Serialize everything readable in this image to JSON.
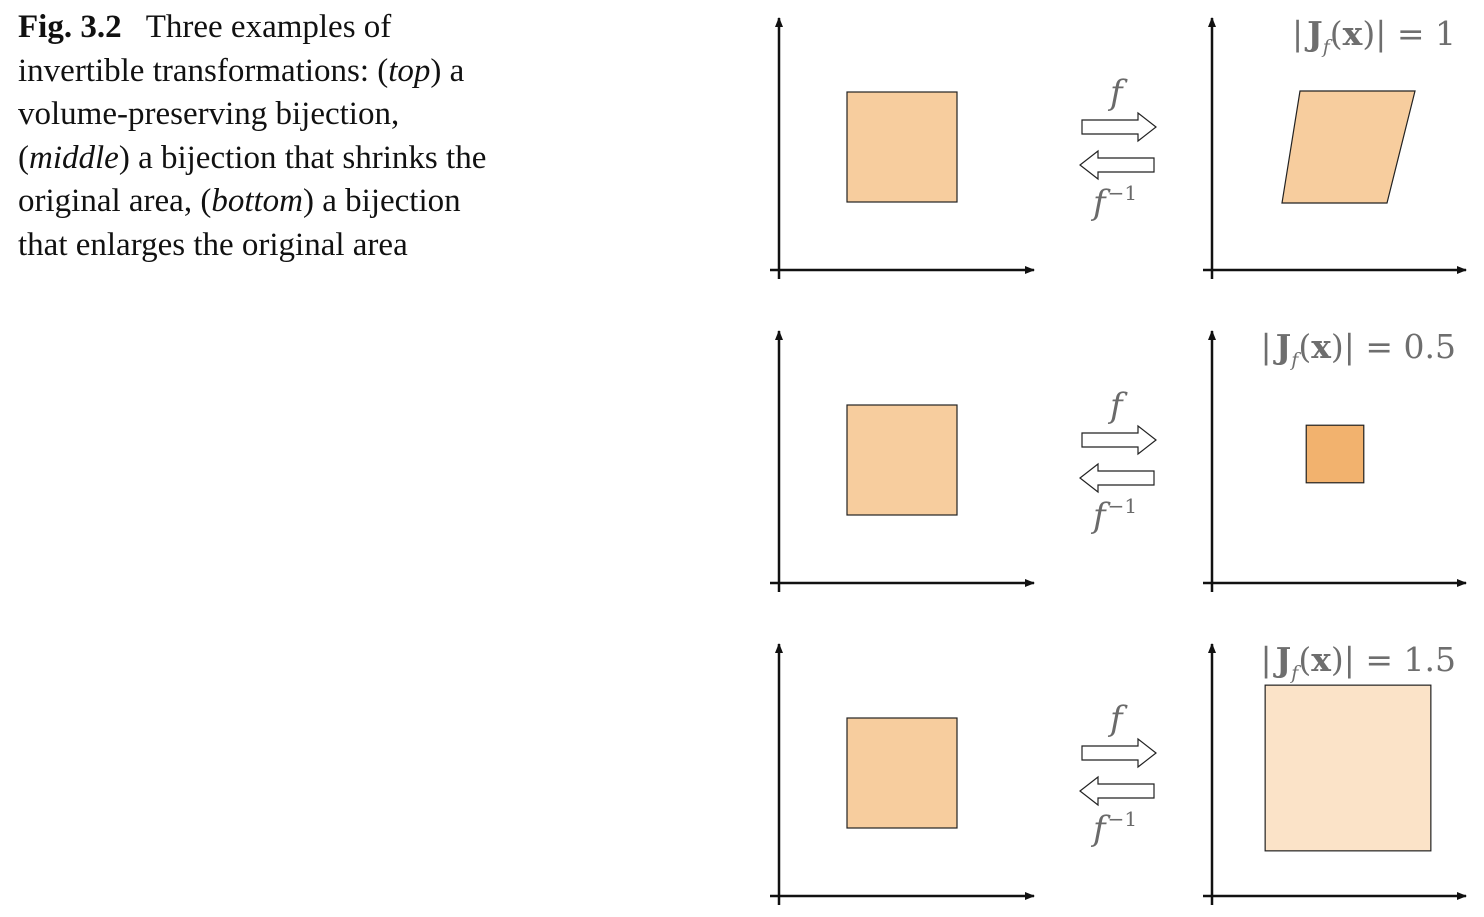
{
  "caption": {
    "label": "Fig. 3.2",
    "intro": "Three examples of invertible transformations:",
    "top_word": "top",
    "top_text": " a volume-preserving bijection,",
    "middle_word": "middle",
    "middle_text": " a bijection that shrinks the original area,",
    "bottom_word": "bottom",
    "bottom_text": " a bijection that enlarges the original area"
  },
  "rows": [
    {
      "forward_label": "f",
      "inverse_base": "f",
      "inverse_sup": "−1",
      "jacobian_value": "1",
      "scale": 1.0
    },
    {
      "forward_label": "f",
      "inverse_base": "f",
      "inverse_sup": "−1",
      "jacobian_value": "0.5",
      "scale": 0.5
    },
    {
      "forward_label": "f",
      "inverse_base": "f",
      "inverse_sup": "−1",
      "jacobian_value": "1.5",
      "scale": 1.5
    }
  ],
  "jacobian": {
    "bar_open": "|",
    "J": "J",
    "sub": "f",
    "paren": "(",
    "x": "x",
    "close": ")|",
    "eq": " = "
  },
  "colors": {
    "source_square": "#f7cd9e",
    "volume_preserved": "#f7cd9e",
    "shrunk": "#f2b26e",
    "enlarged": "#fbe3c8",
    "outline": "#222222"
  }
}
